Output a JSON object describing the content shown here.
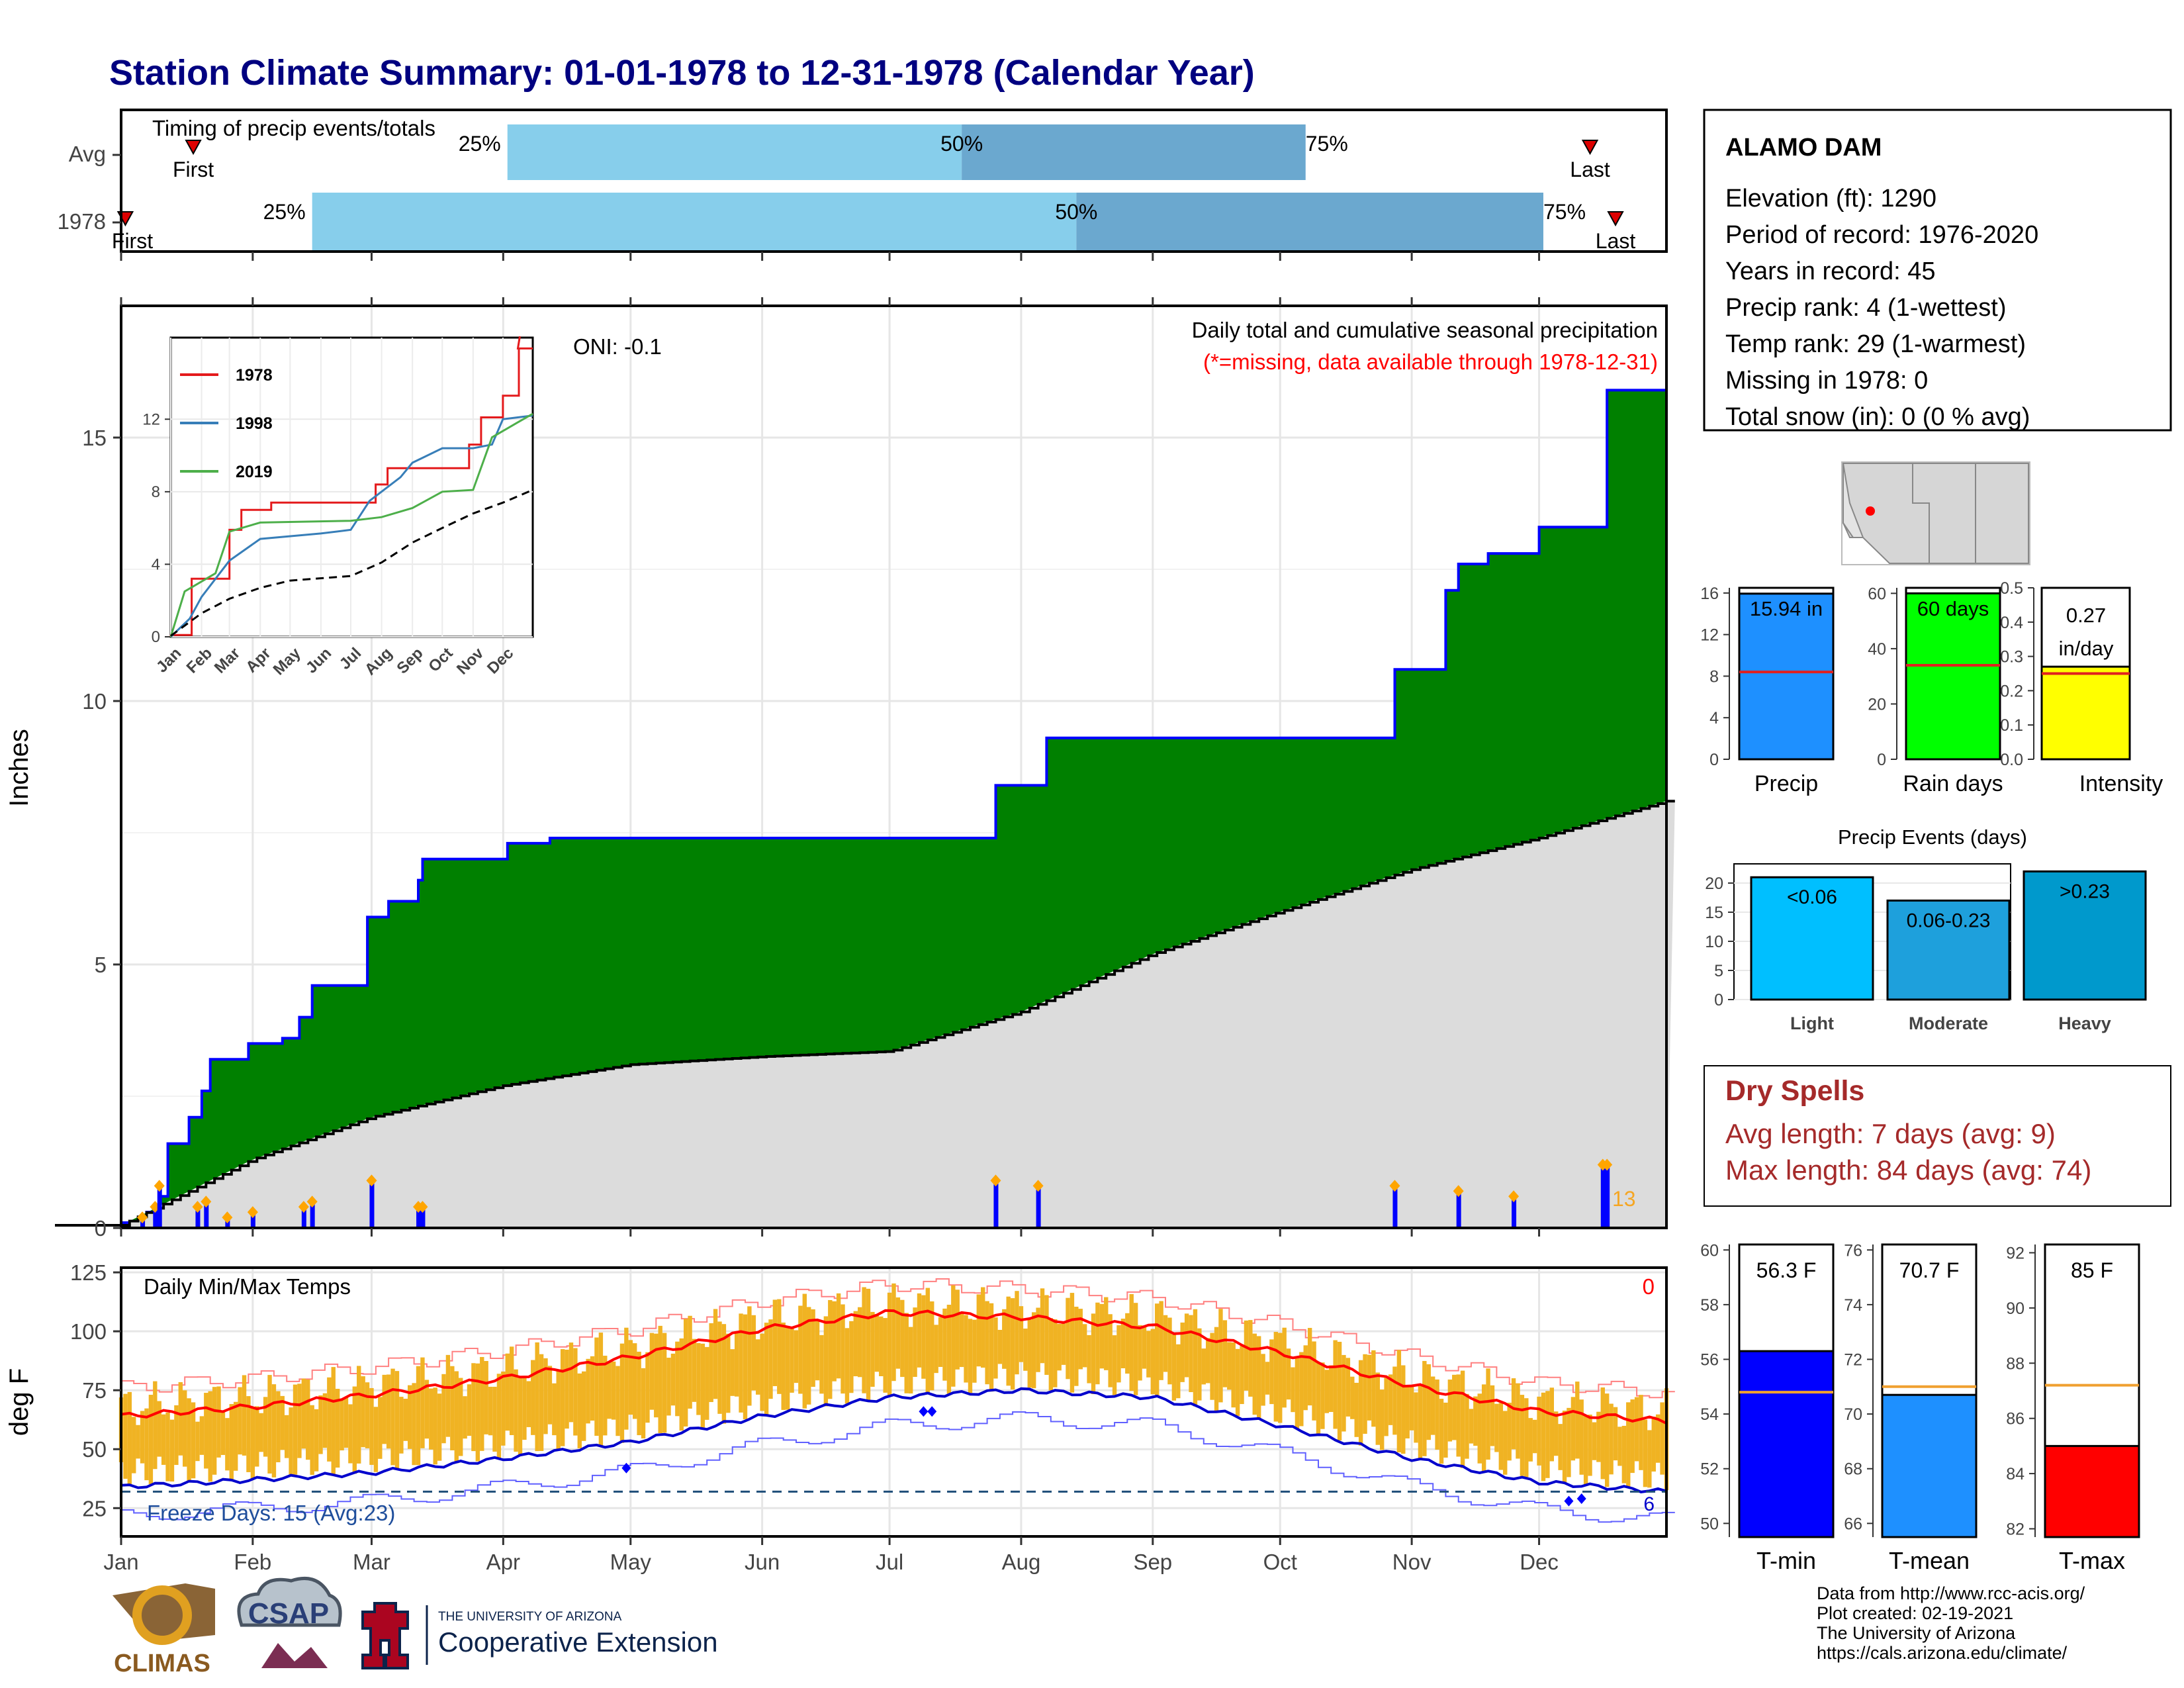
{
  "title": "Station Climate Summary: 01-01-1978 to 12-31-1978 (Calendar Year)",
  "timing": {
    "label": "Timing of precip events/totals",
    "rows": [
      {
        "name": "Avg",
        "first_label": "First",
        "last_label": "Last",
        "first_day": 18,
        "p25_day": 92,
        "p50_day": 199,
        "p75_day": 280,
        "last_day": 347
      },
      {
        "name": "1978",
        "first_label": "First",
        "last_label": "Last",
        "first_day": 2,
        "p25_day": 46,
        "p50_day": 226,
        "p75_day": 336,
        "last_day": 353
      }
    ],
    "quartile_labels": [
      "25%",
      "50%",
      "75%"
    ]
  },
  "main_chart": {
    "ylabel": "Inches",
    "annotation": "Daily total and cumulative seasonal precipitation",
    "missing_note": "(*=missing, data available through 1978-12-31)",
    "oni": "ONI: -0.1",
    "rain_day_count": "13",
    "colors": {
      "cumulative_fill": "#008000",
      "cumulative_line": "#0000ff",
      "normal_fill": "#dcdcdc",
      "daily_bar": "#0000ff",
      "marker": "#ffa500"
    }
  },
  "temp_chart": {
    "ylabel": "deg F",
    "label": "Daily Min/Max Temps",
    "freeze_text": "Freeze Days: 15 (Avg:23)",
    "top_right_count": "0",
    "bottom_right_count": "6",
    "colors": {
      "daily_range": "#f0b323",
      "max_mean": "#ff0000",
      "min_mean": "#0000cc"
    }
  },
  "station": {
    "name": "ALAMO DAM",
    "lines": [
      "Elevation (ft): 1290",
      "Period of record: 1976-2020",
      "Years in record: 45",
      "Precip rank: 4 (1-wettest)",
      "Temp rank: 29 (1-warmest)",
      "Missing in 1978: 0",
      "Total snow (in): 0 (0 % avg)"
    ]
  },
  "summary_bars": {
    "precip": {
      "label": "Precip",
      "text": "15.94 in",
      "value": 15.94,
      "avg": 8.4,
      "ymax": 16.5,
      "ticks": [
        0,
        4,
        8,
        12,
        16
      ],
      "color": "#1e90ff"
    },
    "rain_days": {
      "label": "Rain days",
      "text": "60 days",
      "value": 60,
      "avg": 34,
      "ymax": 62,
      "ticks": [
        0,
        20,
        40,
        60
      ],
      "color": "#00ff00"
    },
    "intensity": {
      "label": "Intensity",
      "text1": "0.27",
      "text2": "in/day",
      "value": 0.27,
      "avg": 0.25,
      "ymax": 0.5,
      "ticks": [
        "0.0",
        "0.1",
        "0.2",
        "0.3",
        "0.4",
        "0.5"
      ],
      "color": "#ffff00"
    }
  },
  "events": {
    "title": "Precip Events (days)",
    "ticks": [
      0,
      5,
      10,
      15,
      20
    ],
    "bars": [
      {
        "label": "Light",
        "text": "<0.06",
        "value": 21,
        "color": "#00bfff"
      },
      {
        "label": "Moderate",
        "text": "0.06-0.23",
        "value": 17,
        "color": "#1ea0dc"
      },
      {
        "label": "Heavy",
        "text": ">0.23",
        "value": 22,
        "color": "#0099cc"
      }
    ]
  },
  "dry_spells": {
    "title": "Dry Spells",
    "avg_line": "Avg length: 7 days (avg: 9)",
    "max_line": "Max length: 84 days (avg: 74)"
  },
  "temp_bars": {
    "tmin": {
      "label": "T-min",
      "text": "56.3 F",
      "value": 56.3,
      "avg": 54.8,
      "ymin": 49.5,
      "ymax": 60.2,
      "ticks": [
        50,
        52,
        54,
        56,
        58,
        60
      ],
      "color": "#0000ff"
    },
    "tmean": {
      "label": "T-mean",
      "text": "70.7 F",
      "value": 70.7,
      "avg": 71.0,
      "ymin": 65.5,
      "ymax": 76.2,
      "ticks": [
        66,
        68,
        70,
        72,
        74,
        76
      ],
      "color": "#1e90ff"
    },
    "tmax": {
      "label": "T-max",
      "text": "85 F",
      "value": 85,
      "avg": 87.2,
      "ymin": 81.7,
      "ymax": 92.3,
      "ticks": [
        82,
        84,
        86,
        88,
        90,
        92
      ],
      "color": "#ff0000"
    }
  },
  "inset": {
    "series": [
      {
        "name": "1978",
        "color": "#e41a1c"
      },
      {
        "name": "1998",
        "color": "#377eb8"
      },
      {
        "name": "2019",
        "color": "#4daf4a"
      }
    ],
    "yticks": [
      0,
      4,
      8,
      12
    ]
  },
  "months": [
    "Jan",
    "Feb",
    "Mar",
    "Apr",
    "May",
    "Jun",
    "Jul",
    "Aug",
    "Sep",
    "Oct",
    "Nov",
    "Dec"
  ],
  "logos": {
    "climas": "CLIMAS",
    "csap": "CSAP",
    "ua_small": "THE UNIVERSITY OF ARIZONA",
    "ua_big": "Cooperative Extension"
  },
  "credits": [
    "Data from http://www.rcc-acis.org/",
    "Plot created: 02-19-2021",
    "The University of Arizona",
    "https://cals.arizona.edu/climate/"
  ],
  "chart_data": [
    {
      "type": "area",
      "title": "Daily total and cumulative seasonal precipitation",
      "xlabel": "",
      "ylabel": "Inches",
      "xlim": [
        "1978-01-01",
        "1978-12-31"
      ],
      "ylim": [
        0,
        17.5
      ],
      "yticks": [
        0,
        5,
        10,
        15
      ],
      "series": [
        {
          "name": "1978",
          "points": [
            [
              "1978-01-01",
              0.1
            ],
            [
              "1978-01-07",
              0.3
            ],
            [
              "1978-01-10",
              0.6
            ],
            [
              "1978-01-12",
              1.6
            ],
            [
              "1978-01-17",
              2.1
            ],
            [
              "1978-01-20",
              2.6
            ],
            [
              "1978-01-22",
              3.2
            ],
            [
              "1978-01-31",
              3.5
            ],
            [
              "1978-02-08",
              3.6
            ],
            [
              "1978-02-12",
              4.0
            ],
            [
              "1978-02-15",
              4.6
            ],
            [
              "1978-02-28",
              5.9
            ],
            [
              "1978-03-05",
              6.2
            ],
            [
              "1978-03-12",
              6.6
            ],
            [
              "1978-03-13",
              7.0
            ],
            [
              "1978-04-02",
              7.3
            ],
            [
              "1978-04-12",
              7.4
            ],
            [
              "1978-05-01",
              7.4
            ],
            [
              "1978-07-26",
              8.4
            ],
            [
              "1978-07-29",
              8.4
            ],
            [
              "1978-08-07",
              9.3
            ],
            [
              "1978-10-26",
              9.3
            ],
            [
              "1978-10-28",
              10.6
            ],
            [
              "1978-11-09",
              12.1
            ],
            [
              "1978-11-12",
              12.6
            ],
            [
              "1978-11-19",
              12.8
            ],
            [
              "1978-12-01",
              13.3
            ],
            [
              "1978-12-17",
              15.9
            ],
            [
              "1978-12-31",
              15.9
            ]
          ]
        },
        {
          "name": "Avg",
          "points": [
            [
              "1978-01-01",
              0.05
            ],
            [
              "1978-02-01",
              1.3
            ],
            [
              "1978-03-01",
              2.1
            ],
            [
              "1978-04-01",
              2.7
            ],
            [
              "1978-05-01",
              3.1
            ],
            [
              "1978-06-01",
              3.25
            ],
            [
              "1978-07-01",
              3.35
            ],
            [
              "1978-08-01",
              4.1
            ],
            [
              "1978-09-01",
              5.2
            ],
            [
              "1978-10-01",
              6.0
            ],
            [
              "1978-11-01",
              6.8
            ],
            [
              "1978-12-01",
              7.4
            ],
            [
              "1978-12-31",
              8.1
            ]
          ]
        },
        {
          "name": "Daily",
          "points": [
            [
              "1978-01-06",
              0.2
            ],
            [
              "1978-01-09",
              0.4
            ],
            [
              "1978-01-10",
              0.8
            ],
            [
              "1978-01-19",
              0.4
            ],
            [
              "1978-01-21",
              0.5
            ],
            [
              "1978-01-26",
              0.2
            ],
            [
              "1978-02-01",
              0.3
            ],
            [
              "1978-02-13",
              0.4
            ],
            [
              "1978-02-15",
              0.5
            ],
            [
              "1978-03-01",
              0.9
            ],
            [
              "1978-03-12",
              0.4
            ],
            [
              "1978-03-13",
              0.4
            ],
            [
              "1978-07-26",
              0.9
            ],
            [
              "1978-08-05",
              0.8
            ],
            [
              "1978-10-28",
              0.8
            ],
            [
              "1978-11-12",
              0.7
            ],
            [
              "1978-11-25",
              0.6
            ],
            [
              "1978-12-16",
              1.2
            ],
            [
              "1978-12-17",
              1.2
            ]
          ]
        }
      ]
    },
    {
      "type": "bar",
      "title": "Daily Min/Max Temps",
      "xlabel": "",
      "ylabel": "deg F",
      "xlim": [
        "1978-01-01",
        "1978-12-31"
      ],
      "ylim": [
        13,
        127
      ],
      "yticks": [
        25,
        50,
        75,
        100,
        125
      ],
      "series": [
        {
          "name": "Avg max",
          "points": [
            [
              "1978-01-01",
              64
            ],
            [
              "1978-02-01",
              68
            ],
            [
              "1978-03-01",
              73
            ],
            [
              "1978-04-01",
              80
            ],
            [
              "1978-05-01",
              89
            ],
            [
              "1978-06-01",
              101
            ],
            [
              "1978-07-01",
              108
            ],
            [
              "1978-08-01",
              106
            ],
            [
              "1978-09-01",
              102
            ],
            [
              "1978-10-01",
              91
            ],
            [
              "1978-11-01",
              77
            ],
            [
              "1978-12-01",
              66
            ],
            [
              "1978-12-31",
              62
            ]
          ]
        },
        {
          "name": "Avg min",
          "points": [
            [
              "1978-01-01",
              34
            ],
            [
              "1978-02-01",
              37
            ],
            [
              "1978-03-01",
              40
            ],
            [
              "1978-04-01",
              46
            ],
            [
              "1978-05-01",
              53
            ],
            [
              "1978-06-01",
              64
            ],
            [
              "1978-07-01",
              72
            ],
            [
              "1978-08-01",
              75
            ],
            [
              "1978-09-01",
              72
            ],
            [
              "1978-10-01",
              60
            ],
            [
              "1978-11-01",
              46
            ],
            [
              "1978-12-01",
              36
            ],
            [
              "1978-12-31",
              32
            ]
          ]
        }
      ],
      "reference_line": 32
    },
    {
      "type": "bar",
      "title": "",
      "categories": [
        "Precip",
        "Rain days",
        "Intensity"
      ],
      "values": [
        15.94,
        60,
        0.27
      ],
      "averages": [
        8.4,
        34,
        0.25
      ]
    },
    {
      "type": "bar",
      "title": "Precip Events (days)",
      "categories": [
        "Light",
        "Moderate",
        "Heavy"
      ],
      "values": [
        21,
        17,
        22
      ]
    },
    {
      "type": "bar",
      "title": "",
      "categories": [
        "T-min",
        "T-mean",
        "T-max"
      ],
      "values": [
        56.3,
        70.7,
        85
      ],
      "averages": [
        54.8,
        71.0,
        87.2
      ]
    },
    {
      "type": "line",
      "title": "",
      "xlabel": "",
      "ylabel": "",
      "ylim": [
        0,
        16
      ],
      "yticks": [
        0,
        4,
        8,
        12
      ],
      "series": [
        {
          "name": "1978",
          "points": [
            [
              "1978-01-01",
              0.1
            ],
            [
              "1978-01-22",
              3.2
            ],
            [
              "1978-03-01",
              5.9
            ],
            [
              "1978-03-13",
              7.0
            ],
            [
              "1978-04-12",
              7.4
            ],
            [
              "1978-07-26",
              8.4
            ],
            [
              "1978-08-07",
              9.3
            ],
            [
              "1978-10-28",
              10.6
            ],
            [
              "1978-11-09",
              12.1
            ],
            [
              "1978-12-01",
              13.3
            ],
            [
              "1978-12-17",
              15.9
            ],
            [
              "1978-12-31",
              15.9
            ]
          ]
        },
        {
          "name": "1998",
          "points": [
            [
              "1978-01-01",
              0
            ],
            [
              "1978-01-20",
              1.0
            ],
            [
              "1978-02-01",
              2.2
            ],
            [
              "1978-03-01",
              4.2
            ],
            [
              "1978-04-01",
              5.4
            ],
            [
              "1978-06-01",
              5.7
            ],
            [
              "1978-07-01",
              5.9
            ],
            [
              "1978-07-20",
              7.5
            ],
            [
              "1978-08-20",
              8.8
            ],
            [
              "1978-09-01",
              9.6
            ],
            [
              "1978-10-01",
              10.4
            ],
            [
              "1978-11-01",
              10.4
            ],
            [
              "1978-11-20",
              10.6
            ],
            [
              "1978-12-01",
              12.0
            ],
            [
              "1978-12-31",
              12.2
            ]
          ]
        },
        {
          "name": "2019",
          "points": [
            [
              "1978-01-01",
              0
            ],
            [
              "1978-01-15",
              2.5
            ],
            [
              "1978-02-15",
              3.5
            ],
            [
              "1978-03-01",
              5.8
            ],
            [
              "1978-04-01",
              6.3
            ],
            [
              "1978-07-01",
              6.4
            ],
            [
              "1978-08-01",
              6.6
            ],
            [
              "1978-09-01",
              7.1
            ],
            [
              "1978-10-01",
              8.0
            ],
            [
              "1978-11-01",
              8.1
            ],
            [
              "1978-11-20",
              11.0
            ],
            [
              "1978-12-15",
              11.8
            ],
            [
              "1978-12-31",
              12.3
            ]
          ]
        },
        {
          "name": "Avg",
          "points": [
            [
              "1978-01-01",
              0.05
            ],
            [
              "1978-02-01",
              1.3
            ],
            [
              "1978-03-01",
              2.1
            ],
            [
              "1978-04-01",
              2.7
            ],
            [
              "1978-05-01",
              3.1
            ],
            [
              "1978-07-01",
              3.35
            ],
            [
              "1978-08-01",
              4.1
            ],
            [
              "1978-09-01",
              5.2
            ],
            [
              "1978-10-01",
              6.0
            ],
            [
              "1978-11-01",
              6.8
            ],
            [
              "1978-12-01",
              7.4
            ],
            [
              "1978-12-31",
              8.1
            ]
          ]
        }
      ]
    }
  ]
}
